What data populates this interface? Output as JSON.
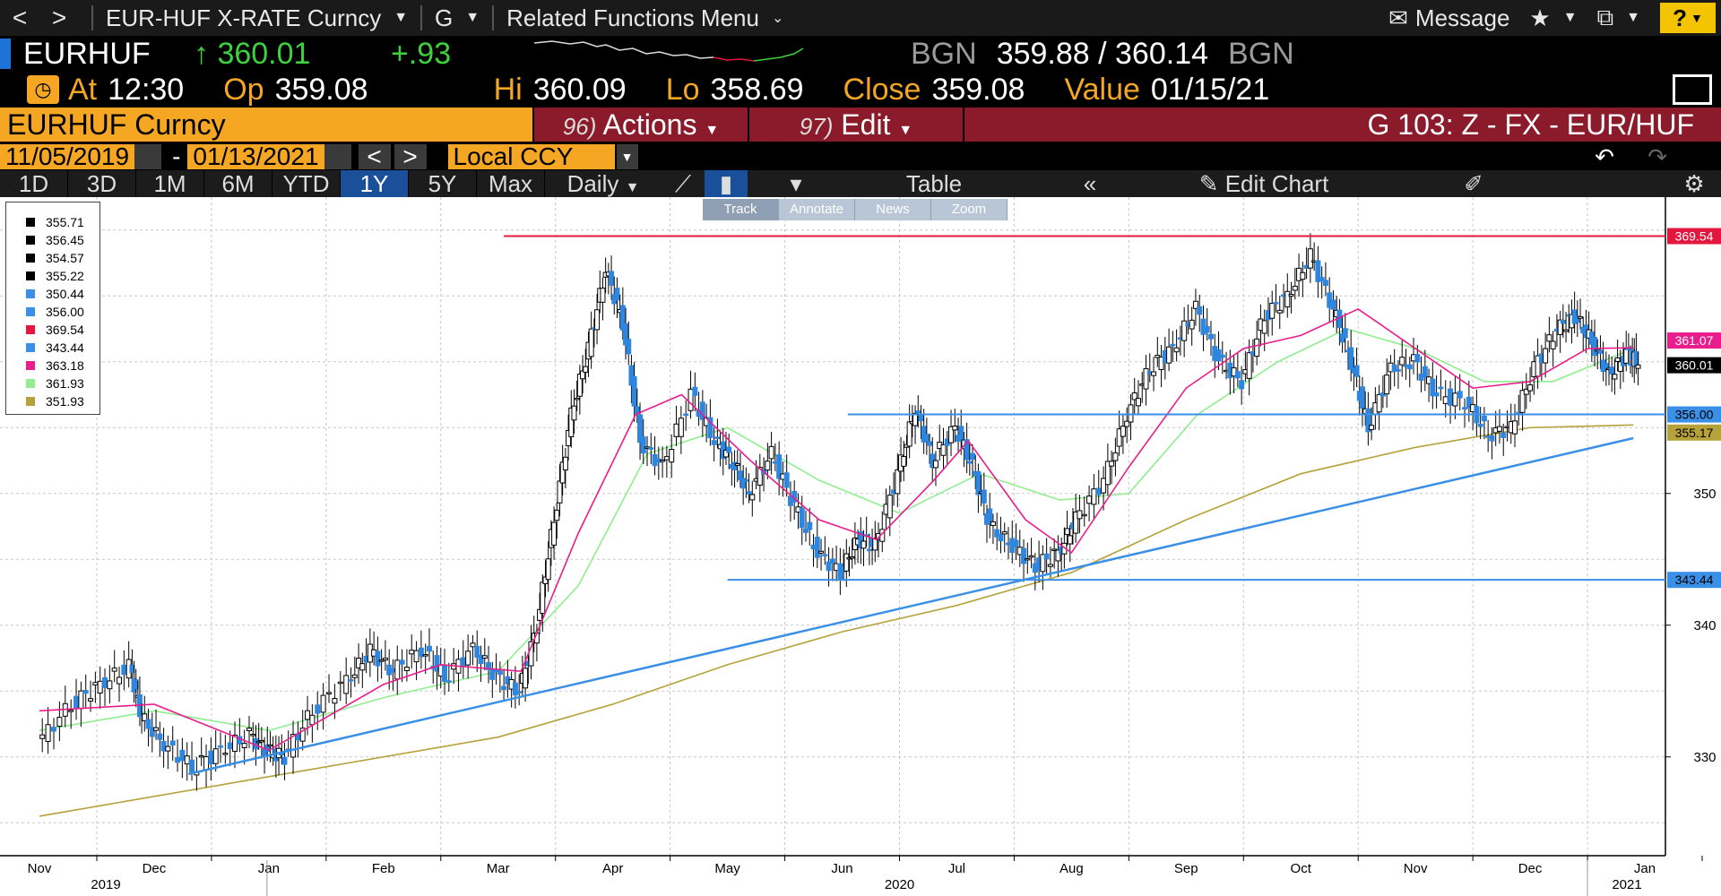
{
  "nav": {
    "back": "<",
    "forward": ">",
    "security": "EUR-HUF X-RATE Curncy",
    "function": "G",
    "related": "Related Functions Menu",
    "message": "Message",
    "help": "?"
  },
  "ticker": {
    "symbol": "EURHUF",
    "last": "↑ 360.01",
    "change": "+.93",
    "bid_src": "BGN",
    "bid_ask": "359.88 / 360.14",
    "ask_src": "BGN"
  },
  "stats": {
    "at_label": "At",
    "at_value": "12:30",
    "open_label": "Op",
    "open_value": "359.08",
    "hi_label": "Hi",
    "hi_value": "360.09",
    "lo_label": "Lo",
    "lo_value": "358.69",
    "close_label": "Close",
    "close_value": "359.08",
    "value_label": "Value",
    "value_value": "01/15/21"
  },
  "cmdbar": {
    "security": "EURHUF Curncy",
    "actions_num": "96)",
    "actions": "Actions",
    "edit_num": "97)",
    "edit": "Edit",
    "title": "G 103: Z - FX - EUR/HUF"
  },
  "daterow": {
    "start": "11/05/2019",
    "end": "01/13/2021",
    "ccy": "Local CCY"
  },
  "tabs": {
    "periods": [
      "1D",
      "3D",
      "1M",
      "6M",
      "YTD",
      "1Y",
      "5Y",
      "Max"
    ],
    "active": "1Y",
    "daily": "Daily",
    "table": "Table",
    "edit_chart": "Edit Chart"
  },
  "mini_toolbar": [
    "Track",
    "Annotate",
    "News",
    "Zoom"
  ],
  "legend": [
    {
      "value": "355.71",
      "color": "#000000"
    },
    {
      "value": "356.45",
      "color": "#000000"
    },
    {
      "value": "354.57",
      "color": "#000000"
    },
    {
      "value": "355.22",
      "color": "#000000"
    },
    {
      "value": "350.44",
      "color": "#3a8fe6"
    },
    {
      "value": "356.00",
      "color": "#3a8fe6"
    },
    {
      "value": "369.54",
      "color": "#e3173e"
    },
    {
      "value": "343.44",
      "color": "#3a8fe6"
    },
    {
      "value": "363.18",
      "color": "#e91e8c"
    },
    {
      "value": "361.93",
      "color": "#90ee90"
    },
    {
      "value": "351.93",
      "color": "#b5a23a"
    }
  ],
  "chart_data": {
    "type": "line",
    "title": "",
    "ylim": [
      322.5,
      372.5
    ],
    "yticks": [
      330,
      340,
      350
    ],
    "x_months": [
      "Nov",
      "Dec",
      "Jan",
      "Feb",
      "Mar",
      "Apr",
      "May",
      "Jun",
      "Jul",
      "Aug",
      "Sep",
      "Oct",
      "Nov",
      "Dec",
      "Jan"
    ],
    "x_years": [
      "2019",
      "2020",
      "2021"
    ],
    "price_labels": [
      {
        "value": "369.54",
        "color": "#e3173e"
      },
      {
        "value": "361.07",
        "color": "#e91e8c"
      },
      {
        "value": "360.01",
        "color": "#000000"
      },
      {
        "value": "356.00",
        "color": "#3a8fe6"
      },
      {
        "value": "355.17",
        "color": "#b5a23a"
      },
      {
        "value": "343.44",
        "color": "#3a8fe6"
      }
    ],
    "horizontal_lines": [
      {
        "value": 369.54,
        "color": "#e3173e",
        "from_month": 4.05
      },
      {
        "value": 356.0,
        "color": "#3a8fe6",
        "from_month": 7.05
      },
      {
        "value": 343.44,
        "color": "#3a8fe6",
        "from_month": 6.0
      }
    ],
    "trendline": {
      "color": "#3a8fe6",
      "start": [
        1.3,
        328.7
      ],
      "end": [
        13.9,
        354.2
      ]
    },
    "price_series": [
      {
        "m": 0.0,
        "v": 331.0
      },
      {
        "m": 0.3,
        "v": 334.0
      },
      {
        "m": 0.55,
        "v": 335.5
      },
      {
        "m": 0.8,
        "v": 336.8
      },
      {
        "m": 0.9,
        "v": 333.0
      },
      {
        "m": 1.1,
        "v": 331.0
      },
      {
        "m": 1.35,
        "v": 329.2
      },
      {
        "m": 1.6,
        "v": 330.5
      },
      {
        "m": 1.85,
        "v": 331.6
      },
      {
        "m": 2.0,
        "v": 330.4
      },
      {
        "m": 2.15,
        "v": 330.0
      },
      {
        "m": 2.4,
        "v": 333.5
      },
      {
        "m": 2.7,
        "v": 335.8
      },
      {
        "m": 2.9,
        "v": 338.0
      },
      {
        "m": 3.1,
        "v": 336.5
      },
      {
        "m": 3.35,
        "v": 338.2
      },
      {
        "m": 3.55,
        "v": 336.0
      },
      {
        "m": 3.8,
        "v": 338.2
      },
      {
        "m": 4.0,
        "v": 336.0
      },
      {
        "m": 4.2,
        "v": 335.0
      },
      {
        "m": 4.35,
        "v": 340.0
      },
      {
        "m": 4.5,
        "v": 348.0
      },
      {
        "m": 4.65,
        "v": 356.0
      },
      {
        "m": 4.8,
        "v": 361.0
      },
      {
        "m": 4.95,
        "v": 367.0
      },
      {
        "m": 5.1,
        "v": 363.0
      },
      {
        "m": 5.25,
        "v": 354.0
      },
      {
        "m": 5.45,
        "v": 352.0
      },
      {
        "m": 5.7,
        "v": 357.5
      },
      {
        "m": 5.9,
        "v": 354.0
      },
      {
        "m": 6.05,
        "v": 352.5
      },
      {
        "m": 6.2,
        "v": 350.0
      },
      {
        "m": 6.4,
        "v": 353.0
      },
      {
        "m": 6.6,
        "v": 349.0
      },
      {
        "m": 6.8,
        "v": 345.5
      },
      {
        "m": 7.0,
        "v": 344.0
      },
      {
        "m": 7.15,
        "v": 346.5
      },
      {
        "m": 7.3,
        "v": 346.0
      },
      {
        "m": 7.5,
        "v": 351.5
      },
      {
        "m": 7.65,
        "v": 356.5
      },
      {
        "m": 7.8,
        "v": 352.5
      },
      {
        "m": 8.0,
        "v": 355.0
      },
      {
        "m": 8.15,
        "v": 352.0
      },
      {
        "m": 8.3,
        "v": 347.5
      },
      {
        "m": 8.5,
        "v": 346.0
      },
      {
        "m": 8.7,
        "v": 344.5
      },
      {
        "m": 8.9,
        "v": 345.5
      },
      {
        "m": 9.05,
        "v": 348.0
      },
      {
        "m": 9.3,
        "v": 351.0
      },
      {
        "m": 9.5,
        "v": 356.0
      },
      {
        "m": 9.7,
        "v": 359.5
      },
      {
        "m": 9.9,
        "v": 361.0
      },
      {
        "m": 10.1,
        "v": 364.0
      },
      {
        "m": 10.3,
        "v": 360.0
      },
      {
        "m": 10.5,
        "v": 358.5
      },
      {
        "m": 10.7,
        "v": 363.5
      },
      {
        "m": 10.9,
        "v": 365.0
      },
      {
        "m": 11.1,
        "v": 368.0
      },
      {
        "m": 11.3,
        "v": 364.0
      },
      {
        "m": 11.45,
        "v": 360.0
      },
      {
        "m": 11.6,
        "v": 355.0
      },
      {
        "m": 11.8,
        "v": 359.5
      },
      {
        "m": 12.0,
        "v": 360.0
      },
      {
        "m": 12.2,
        "v": 357.5
      },
      {
        "m": 12.45,
        "v": 357.0
      },
      {
        "m": 12.65,
        "v": 354.5
      },
      {
        "m": 12.85,
        "v": 355.0
      },
      {
        "m": 13.05,
        "v": 359.5
      },
      {
        "m": 13.25,
        "v": 362.5
      },
      {
        "m": 13.4,
        "v": 363.5
      },
      {
        "m": 13.55,
        "v": 361.5
      },
      {
        "m": 13.7,
        "v": 359.0
      },
      {
        "m": 13.85,
        "v": 360.5
      },
      {
        "m": 13.95,
        "v": 360.0
      }
    ],
    "ma_short": {
      "name": "",
      "color": "#e91e8c",
      "values": [
        {
          "m": 0.0,
          "v": 333.5
        },
        {
          "m": 1.0,
          "v": 334.0
        },
        {
          "m": 2.0,
          "v": 330.5
        },
        {
          "m": 3.0,
          "v": 335.5
        },
        {
          "m": 3.5,
          "v": 337.0
        },
        {
          "m": 4.2,
          "v": 336.5
        },
        {
          "m": 4.7,
          "v": 347.0
        },
        {
          "m": 5.2,
          "v": 356.0
        },
        {
          "m": 5.6,
          "v": 357.5
        },
        {
          "m": 6.2,
          "v": 352.5
        },
        {
          "m": 6.8,
          "v": 348.0
        },
        {
          "m": 7.3,
          "v": 346.5
        },
        {
          "m": 7.8,
          "v": 351.0
        },
        {
          "m": 8.1,
          "v": 354.0
        },
        {
          "m": 8.6,
          "v": 348.0
        },
        {
          "m": 9.0,
          "v": 345.5
        },
        {
          "m": 9.5,
          "v": 352.0
        },
        {
          "m": 10.0,
          "v": 358.0
        },
        {
          "m": 10.5,
          "v": 361.0
        },
        {
          "m": 11.0,
          "v": 362.0
        },
        {
          "m": 11.5,
          "v": 364.0
        },
        {
          "m": 12.0,
          "v": 361.0
        },
        {
          "m": 12.5,
          "v": 358.0
        },
        {
          "m": 13.0,
          "v": 358.5
        },
        {
          "m": 13.5,
          "v": 361.0
        },
        {
          "m": 13.9,
          "v": 361.07
        }
      ]
    },
    "ma_mid": {
      "name": "",
      "color": "#90ee90",
      "values": [
        {
          "m": 0.0,
          "v": 332.0
        },
        {
          "m": 1.0,
          "v": 333.5
        },
        {
          "m": 2.0,
          "v": 332.0
        },
        {
          "m": 3.0,
          "v": 334.5
        },
        {
          "m": 4.0,
          "v": 336.5
        },
        {
          "m": 4.7,
          "v": 343.0
        },
        {
          "m": 5.3,
          "v": 353.0
        },
        {
          "m": 6.0,
          "v": 355.0
        },
        {
          "m": 6.8,
          "v": 351.0
        },
        {
          "m": 7.5,
          "v": 348.5
        },
        {
          "m": 8.2,
          "v": 351.5
        },
        {
          "m": 8.9,
          "v": 349.5
        },
        {
          "m": 9.5,
          "v": 350.0
        },
        {
          "m": 10.1,
          "v": 356.0
        },
        {
          "m": 10.8,
          "v": 360.0
        },
        {
          "m": 11.4,
          "v": 362.5
        },
        {
          "m": 12.0,
          "v": 361.0
        },
        {
          "m": 12.6,
          "v": 358.5
        },
        {
          "m": 13.2,
          "v": 358.5
        },
        {
          "m": 13.9,
          "v": 361.0
        }
      ]
    },
    "ma_long": {
      "name": "",
      "color": "#b5a23a",
      "values": [
        {
          "m": 0.0,
          "v": 325.5
        },
        {
          "m": 2.0,
          "v": 328.5
        },
        {
          "m": 4.0,
          "v": 331.5
        },
        {
          "m": 5.0,
          "v": 334.0
        },
        {
          "m": 6.0,
          "v": 337.0
        },
        {
          "m": 7.0,
          "v": 339.5
        },
        {
          "m": 8.0,
          "v": 341.5
        },
        {
          "m": 9.0,
          "v": 344.0
        },
        {
          "m": 10.0,
          "v": 348.0
        },
        {
          "m": 11.0,
          "v": 351.5
        },
        {
          "m": 12.0,
          "v": 353.5
        },
        {
          "m": 13.0,
          "v": 355.0
        },
        {
          "m": 13.9,
          "v": 355.2
        }
      ]
    }
  }
}
